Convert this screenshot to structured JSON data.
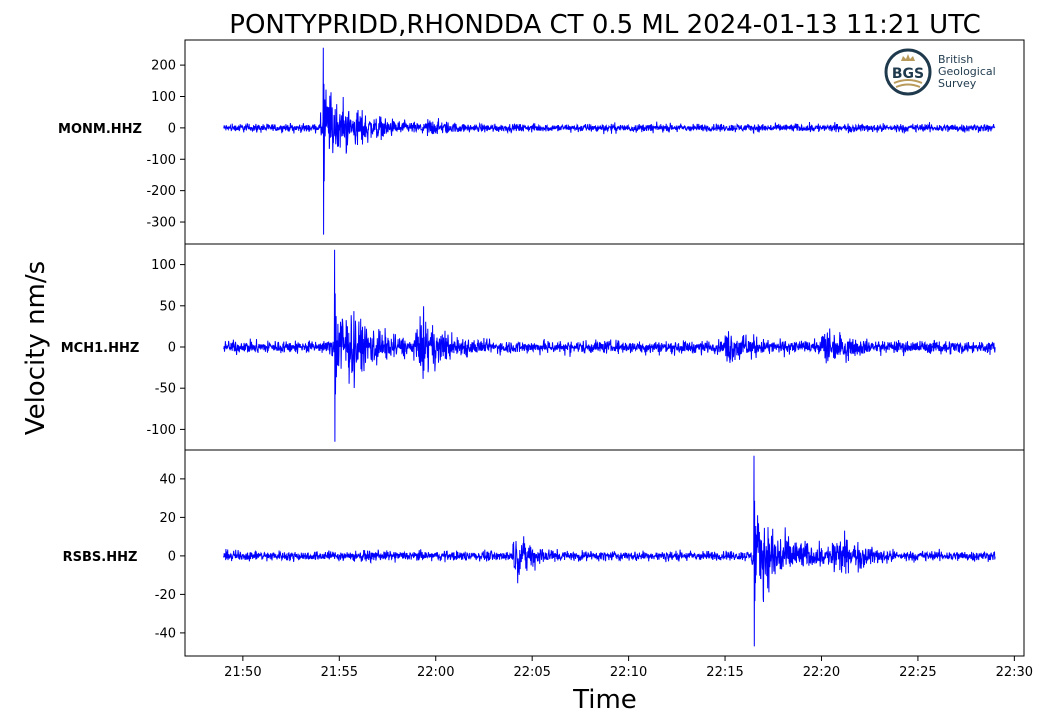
{
  "chart_data": {
    "type": "line",
    "title": "PONTYPRIDD,RHONDDA CT 0.5 ML   2024-01-13 11:21 UTC",
    "xlabel": "Time",
    "ylabel": "Velocity nm/s",
    "grid": false,
    "line_color": "#0000ff",
    "x_ticks": [
      "21:50",
      "21:55",
      "22:00",
      "22:05",
      "22:10",
      "22:15",
      "22:20",
      "22:25",
      "22:30"
    ],
    "x_range": [
      "21:47",
      "22:30:30"
    ],
    "data_range": [
      "21:49",
      "22:29"
    ],
    "logo": {
      "name": "bgs-logo",
      "abbr": "BGS",
      "lines": [
        "British",
        "Geological",
        "Survey"
      ]
    },
    "panels": [
      {
        "station": "MONM.HHZ",
        "ylim": [
          -370,
          280
        ],
        "yticks": [
          200,
          100,
          0,
          -100,
          -200,
          -300
        ],
        "background_amplitude": 20,
        "events": [
          {
            "time": "21:54:10",
            "peak_min": -340,
            "peak_max": 255,
            "amplitude": 150
          },
          {
            "time": "21:59:30",
            "amplitude": 40
          }
        ]
      },
      {
        "station": "MCH1.HHZ",
        "ylim": [
          -125,
          125
        ],
        "yticks": [
          100,
          50,
          0,
          -50,
          -100
        ],
        "background_amplitude": 12,
        "events": [
          {
            "time": "21:54:45",
            "peak_min": -115,
            "peak_max": 118,
            "amplitude": 70
          },
          {
            "time": "21:59:00",
            "amplitude": 45
          },
          {
            "time": "22:15:00",
            "amplitude": 30
          },
          {
            "time": "22:20:00",
            "amplitude": 30
          }
        ]
      },
      {
        "station": "RSBS.HHZ",
        "ylim": [
          -52,
          55
        ],
        "yticks": [
          40,
          20,
          0,
          -20,
          -40
        ],
        "background_amplitude": 4,
        "events": [
          {
            "time": "22:04:00",
            "amplitude": 12
          },
          {
            "time": "22:16:30",
            "peak_min": -47,
            "peak_max": 52,
            "amplitude": 28
          },
          {
            "time": "22:20:30",
            "amplitude": 15
          }
        ]
      }
    ]
  }
}
